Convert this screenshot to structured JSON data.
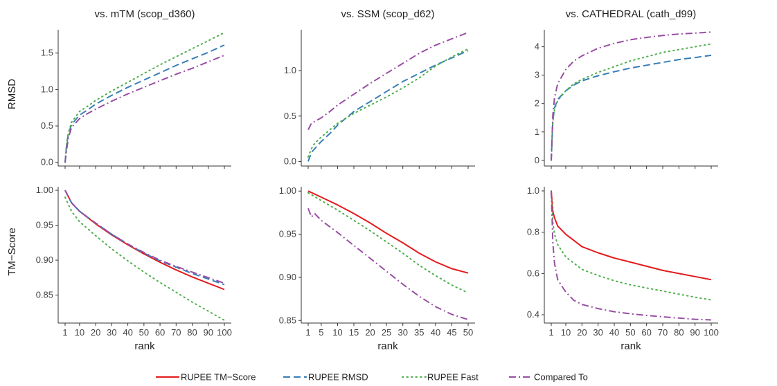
{
  "chart_data": {
    "type": "line",
    "legend": {
      "placement": "bottom",
      "entries": [
        "RUPEE TM−Score",
        "RUPEE RMSD",
        "RUPEE Fast",
        "Compared To"
      ]
    },
    "series_styles": [
      {
        "name": "RUPEE TM−Score",
        "color": "#e41a1c",
        "dash": "solid"
      },
      {
        "name": "RUPEE RMSD",
        "color": "#377eb8",
        "dash": "dashed"
      },
      {
        "name": "RUPEE Fast",
        "color": "#4daf4a",
        "dash": "dotted"
      },
      {
        "name": "Compared To",
        "color": "#984ea3",
        "dash": "dashdot"
      }
    ],
    "column_titles": [
      "vs. mTM (scop_d360)",
      "vs. SSM (scop_d62)",
      "vs. CATHEDRAL (cath_d99)"
    ],
    "row_labels": [
      "RMSD",
      "TM−Score"
    ],
    "xlabel": "rank",
    "grid": false,
    "panels": [
      {
        "row": 0,
        "col": 0,
        "xlim": [
          1,
          100
        ],
        "ylim": [
          -0.05,
          1.82
        ],
        "xticks": [
          1,
          10,
          20,
          30,
          40,
          50,
          60,
          70,
          80,
          90,
          100
        ],
        "yticks": [
          0.0,
          0.5,
          1.0,
          1.5
        ],
        "ytick_labels": [
          "0.0",
          "0.5",
          "1.0",
          "1.5"
        ],
        "series": [
          {
            "name": "RUPEE RMSD",
            "x": [
              1,
              2,
              3,
              5,
              10,
              15,
              20,
              30,
              40,
              50,
              60,
              70,
              80,
              90,
              100
            ],
            "y": [
              0.0,
              0.25,
              0.38,
              0.52,
              0.65,
              0.72,
              0.8,
              0.92,
              1.03,
              1.13,
              1.23,
              1.33,
              1.42,
              1.51,
              1.61
            ]
          },
          {
            "name": "RUPEE Fast",
            "x": [
              1,
              2,
              3,
              5,
              10,
              15,
              20,
              30,
              40,
              50,
              60,
              70,
              80,
              90,
              100
            ],
            "y": [
              0.0,
              0.27,
              0.4,
              0.55,
              0.7,
              0.77,
              0.85,
              0.98,
              1.1,
              1.22,
              1.34,
              1.45,
              1.56,
              1.67,
              1.78
            ]
          },
          {
            "name": "Compared To",
            "x": [
              1,
              2,
              3,
              5,
              10,
              15,
              20,
              30,
              40,
              50,
              60,
              70,
              80,
              90,
              100
            ],
            "y": [
              0.0,
              0.18,
              0.33,
              0.48,
              0.6,
              0.67,
              0.73,
              0.84,
              0.94,
              1.03,
              1.12,
              1.21,
              1.29,
              1.38,
              1.47
            ]
          }
        ]
      },
      {
        "row": 0,
        "col": 1,
        "xlim": [
          1,
          50
        ],
        "ylim": [
          -0.05,
          1.45
        ],
        "xticks": [
          1,
          5,
          10,
          15,
          20,
          25,
          30,
          35,
          40,
          45,
          50
        ],
        "yticks": [
          0.0,
          0.5,
          1.0
        ],
        "ytick_labels": [
          "0.0",
          "0.5",
          "1.0"
        ],
        "series": [
          {
            "name": "RUPEE RMSD",
            "x": [
              1,
              2,
              3,
              5,
              8,
              10,
              15,
              20,
              25,
              30,
              35,
              40,
              45,
              50
            ],
            "y": [
              0.0,
              0.1,
              0.14,
              0.22,
              0.32,
              0.4,
              0.55,
              0.66,
              0.77,
              0.88,
              0.97,
              1.06,
              1.14,
              1.22
            ]
          },
          {
            "name": "RUPEE Fast",
            "x": [
              1,
              2,
              3,
              5,
              8,
              10,
              15,
              20,
              25,
              30,
              35,
              40,
              45,
              50
            ],
            "y": [
              0.05,
              0.14,
              0.2,
              0.27,
              0.36,
              0.42,
              0.53,
              0.62,
              0.71,
              0.81,
              0.92,
              1.05,
              1.15,
              1.24
            ]
          },
          {
            "name": "Compared To",
            "x": [
              1,
              2,
              3,
              5,
              8,
              10,
              15,
              20,
              25,
              30,
              35,
              40,
              45,
              50
            ],
            "y": [
              0.35,
              0.42,
              0.44,
              0.48,
              0.56,
              0.62,
              0.74,
              0.86,
              0.97,
              1.08,
              1.19,
              1.28,
              1.35,
              1.42
            ]
          }
        ]
      },
      {
        "row": 0,
        "col": 2,
        "xlim": [
          1,
          100
        ],
        "ylim": [
          -0.2,
          4.6
        ],
        "xticks": [
          1,
          10,
          20,
          30,
          40,
          50,
          60,
          70,
          80,
          90,
          100
        ],
        "yticks": [
          0,
          1,
          2,
          3,
          4
        ],
        "ytick_labels": [
          "0",
          "1",
          "2",
          "3",
          "4"
        ],
        "series": [
          {
            "name": "RUPEE RMSD",
            "x": [
              1,
              2,
              3,
              5,
              10,
              15,
              20,
              30,
              40,
              50,
              60,
              70,
              80,
              90,
              100
            ],
            "y": [
              0.0,
              1.4,
              1.85,
              2.15,
              2.45,
              2.65,
              2.8,
              2.98,
              3.12,
              3.25,
              3.35,
              3.45,
              3.55,
              3.62,
              3.7
            ]
          },
          {
            "name": "RUPEE Fast",
            "x": [
              1,
              2,
              3,
              5,
              10,
              15,
              20,
              30,
              40,
              50,
              60,
              70,
              80,
              90,
              100
            ],
            "y": [
              0.0,
              1.35,
              1.8,
              2.1,
              2.45,
              2.7,
              2.85,
              3.1,
              3.3,
              3.5,
              3.65,
              3.8,
              3.9,
              4.0,
              4.1
            ]
          },
          {
            "name": "Compared To",
            "x": [
              1,
              2,
              3,
              5,
              10,
              15,
              20,
              30,
              40,
              50,
              60,
              70,
              80,
              90,
              100
            ],
            "y": [
              0.0,
              1.6,
              2.2,
              2.7,
              3.2,
              3.5,
              3.68,
              3.95,
              4.12,
              4.25,
              4.33,
              4.4,
              4.45,
              4.48,
              4.52
            ]
          }
        ]
      },
      {
        "row": 1,
        "col": 0,
        "xlim": [
          1,
          100
        ],
        "ylim": [
          0.81,
          1.005
        ],
        "xticks": [
          1,
          10,
          20,
          30,
          40,
          50,
          60,
          70,
          80,
          90,
          100
        ],
        "yticks": [
          0.85,
          0.9,
          0.95,
          1.0
        ],
        "ytick_labels": [
          "0.85",
          "0.90",
          "0.95",
          "1.00"
        ],
        "series": [
          {
            "name": "RUPEE TM−Score",
            "x": [
              1,
              5,
              10,
              20,
              30,
              40,
              50,
              60,
              70,
              80,
              90,
              100
            ],
            "y": [
              1.0,
              0.982,
              0.97,
              0.952,
              0.936,
              0.922,
              0.909,
              0.897,
              0.886,
              0.876,
              0.867,
              0.858
            ]
          },
          {
            "name": "RUPEE RMSD",
            "x": [
              1,
              5,
              10,
              20,
              30,
              40,
              50,
              60,
              70,
              80,
              90,
              100
            ],
            "y": [
              1.0,
              0.982,
              0.97,
              0.953,
              0.937,
              0.923,
              0.91,
              0.899,
              0.89,
              0.881,
              0.873,
              0.865
            ]
          },
          {
            "name": "RUPEE Fast",
            "x": [
              1,
              5,
              10,
              20,
              30,
              40,
              50,
              60,
              70,
              80,
              90,
              100
            ],
            "y": [
              0.99,
              0.97,
              0.955,
              0.935,
              0.916,
              0.899,
              0.883,
              0.868,
              0.854,
              0.84,
              0.827,
              0.814
            ]
          },
          {
            "name": "Compared To",
            "x": [
              1,
              5,
              10,
              20,
              30,
              40,
              50,
              60,
              70,
              80,
              90,
              100
            ],
            "y": [
              1.0,
              0.982,
              0.97,
              0.953,
              0.937,
              0.923,
              0.911,
              0.9,
              0.891,
              0.883,
              0.875,
              0.867
            ]
          }
        ]
      },
      {
        "row": 1,
        "col": 1,
        "xlim": [
          1,
          50
        ],
        "ylim": [
          0.847,
          1.005
        ],
        "xticks": [
          1,
          5,
          10,
          15,
          20,
          25,
          30,
          35,
          40,
          45,
          50
        ],
        "yticks": [
          0.85,
          0.9,
          0.95,
          1.0
        ],
        "ytick_labels": [
          "0.85",
          "0.90",
          "0.95",
          "1.00"
        ],
        "series": [
          {
            "name": "RUPEE TM−Score",
            "x": [
              1,
              5,
              10,
              15,
              20,
              25,
              30,
              35,
              40,
              45,
              50
            ],
            "y": [
              1.0,
              0.993,
              0.984,
              0.974,
              0.963,
              0.951,
              0.94,
              0.928,
              0.918,
              0.91,
              0.905
            ]
          },
          {
            "name": "RUPEE Fast",
            "x": [
              1,
              5,
              10,
              15,
              20,
              25,
              30,
              35,
              40,
              45,
              50
            ],
            "y": [
              0.998,
              0.989,
              0.978,
              0.966,
              0.954,
              0.941,
              0.928,
              0.914,
              0.902,
              0.891,
              0.882
            ]
          },
          {
            "name": "Compared To",
            "x": [
              1,
              2,
              3,
              5,
              10,
              15,
              20,
              25,
              30,
              35,
              40,
              45,
              50
            ],
            "y": [
              0.98,
              0.97,
              0.974,
              0.966,
              0.952,
              0.937,
              0.922,
              0.907,
              0.892,
              0.878,
              0.866,
              0.857,
              0.851
            ]
          }
        ]
      },
      {
        "row": 1,
        "col": 2,
        "xlim": [
          1,
          100
        ],
        "ylim": [
          0.36,
          1.02
        ],
        "xticks": [
          1,
          10,
          20,
          30,
          40,
          50,
          60,
          70,
          80,
          90,
          100
        ],
        "yticks": [
          0.4,
          0.6,
          0.8,
          1.0
        ],
        "ytick_labels": [
          "0.4",
          "0.6",
          "0.8",
          "1.0"
        ],
        "series": [
          {
            "name": "RUPEE TM−Score",
            "x": [
              1,
              2,
              3,
              5,
              10,
              15,
              20,
              30,
              40,
              50,
              60,
              70,
              80,
              90,
              100
            ],
            "y": [
              1.0,
              0.9,
              0.87,
              0.83,
              0.79,
              0.76,
              0.73,
              0.7,
              0.675,
              0.655,
              0.635,
              0.615,
              0.6,
              0.585,
              0.57
            ]
          },
          {
            "name": "RUPEE Fast",
            "x": [
              1,
              2,
              3,
              5,
              10,
              15,
              20,
              30,
              40,
              50,
              60,
              70,
              80,
              90,
              100
            ],
            "y": [
              1.0,
              0.85,
              0.79,
              0.74,
              0.68,
              0.65,
              0.62,
              0.59,
              0.565,
              0.545,
              0.53,
              0.515,
              0.5,
              0.485,
              0.472
            ]
          },
          {
            "name": "Compared To",
            "x": [
              1,
              2,
              3,
              5,
              10,
              15,
              20,
              30,
              40,
              50,
              60,
              70,
              80,
              90,
              100
            ],
            "y": [
              1.0,
              0.75,
              0.65,
              0.57,
              0.51,
              0.47,
              0.45,
              0.43,
              0.415,
              0.405,
              0.397,
              0.39,
              0.384,
              0.378,
              0.375
            ]
          }
        ]
      }
    ]
  }
}
